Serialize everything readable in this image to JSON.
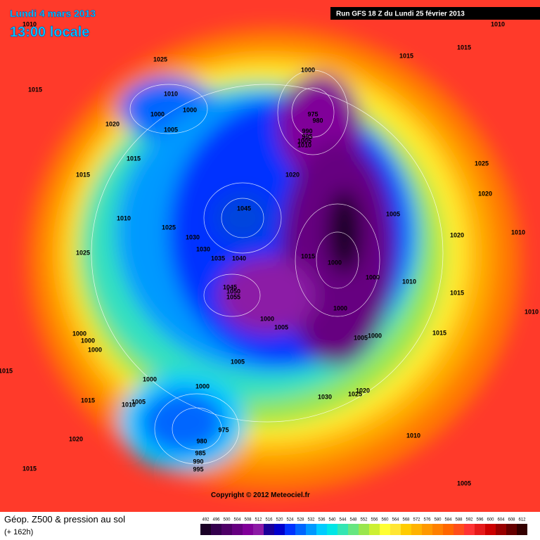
{
  "header": {
    "date": "Lundi 4 mars 2013",
    "time": "13:00 locale",
    "run": "Run GFS 18 Z du Lundi 25 février 2013"
  },
  "map": {
    "pressure_labels": [
      1010,
      1010,
      1015,
      1015,
      1025,
      1000,
      1015,
      1010,
      1000,
      1000,
      975,
      980,
      1020,
      1005,
      990,
      995,
      1005,
      1010,
      1015,
      1025,
      1015,
      1020,
      1020,
      1045,
      1005,
      1010,
      1025,
      1030,
      1020,
      1010,
      1030,
      1025,
      1035,
      1040,
      1015,
      1000,
      1000,
      1010,
      1045,
      1050,
      1055,
      1015,
      1010,
      1000,
      1000,
      1005,
      1015,
      1000,
      1000,
      1005,
      1000,
      1000,
      1005,
      1015,
      1000,
      1000,
      1020,
      1025,
      1030,
      1015,
      1010,
      1005,
      975,
      1010,
      1020,
      980,
      985,
      990,
      995,
      1015,
      1005
    ]
  },
  "footer": {
    "title": "Géop. Z500 & pression au sol",
    "lead_time": "(+ 162h)",
    "copyright": "Copyright © 2012 Meteociel.fr",
    "legend": {
      "values": [
        492,
        496,
        500,
        504,
        508,
        512,
        516,
        520,
        524,
        528,
        532,
        536,
        540,
        544,
        548,
        552,
        556,
        560,
        564,
        568,
        572,
        576,
        580,
        584,
        588,
        592,
        596,
        600,
        604,
        608,
        612
      ],
      "colors": [
        "#1a0026",
        "#33004d",
        "#4d0066",
        "#660080",
        "#800099",
        "#8c1aa6",
        "#1a0099",
        "#0000cc",
        "#0033ff",
        "#0066ff",
        "#0099ff",
        "#00ccff",
        "#00e6e6",
        "#33e6b3",
        "#66e680",
        "#99e64d",
        "#ccf033",
        "#ffff33",
        "#ffe633",
        "#ffcc00",
        "#ffb300",
        "#ff9900",
        "#ff8000",
        "#ff6600",
        "#ff4d1a",
        "#ff3333",
        "#e61a1a",
        "#cc0000",
        "#990000",
        "#660000",
        "#330000"
      ]
    }
  }
}
